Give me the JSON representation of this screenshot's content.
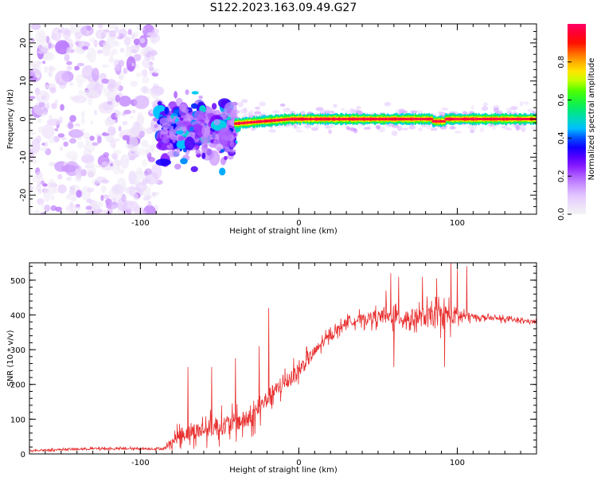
{
  "title": "S122.2023.163.09.49.G27",
  "colors": {
    "snr_line": "#e83030",
    "axis": "#000000",
    "colormap": [
      "#f4f4f4",
      "#e6ccff",
      "#bb77ff",
      "#7a00ff",
      "#0000ff",
      "#00c8ff",
      "#00e87a",
      "#33ff00",
      "#ffff00",
      "#ff9900",
      "#ff0000",
      "#ff0066"
    ]
  },
  "chart_data": [
    {
      "type": "heatmap",
      "title": "S122.2023.163.09.49.G27",
      "xlabel": "Height of straight line (km)",
      "ylabel": "Frequency (Hz)",
      "xlim": [
        -170,
        150
      ],
      "ylim": [
        -25,
        25
      ],
      "x_ticks": [
        -100,
        0,
        100
      ],
      "y_ticks": [
        -20,
        -10,
        0,
        10,
        20
      ],
      "description_of_data": [
        {
          "x_range": [
            -170,
            -88
          ],
          "freq_center": 0,
          "freq_spread": 25,
          "amplitude": [
            0.02,
            0.2
          ],
          "pattern": "scattered noise"
        },
        {
          "x_range": [
            -88,
            -40
          ],
          "freq_center": -3,
          "freq_spread": 6,
          "amplitude": [
            0.15,
            0.5
          ],
          "pattern": "scattered cluster"
        },
        {
          "x_range": [
            -40,
            150
          ],
          "freq_center": 0,
          "freq_spread": 1.5,
          "amplitude": [
            0.5,
            1.0
          ],
          "pattern": "narrow ridge"
        }
      ],
      "colorbar": {
        "label": "Normalized spectral amplitude",
        "range": [
          0.0,
          1.0
        ],
        "ticks": [
          "0.0",
          "0.2",
          "0.4",
          "0.6",
          "0.8"
        ]
      }
    },
    {
      "type": "line",
      "xlabel": "Height of straight line (km)",
      "ylabel": "SNR (10 * v/v)",
      "xlim": [
        -170,
        150
      ],
      "ylim": [
        0,
        550
      ],
      "x_ticks": [
        -100,
        0,
        100
      ],
      "y_ticks": [
        0,
        100,
        200,
        300,
        400,
        500
      ],
      "envelope": [
        {
          "x": -170,
          "mean": 10,
          "spread": 5
        },
        {
          "x": -130,
          "mean": 15,
          "spread": 6
        },
        {
          "x": -100,
          "mean": 15,
          "spread": 6
        },
        {
          "x": -85,
          "mean": 15,
          "spread": 8
        },
        {
          "x": -75,
          "mean": 55,
          "spread": 45
        },
        {
          "x": -50,
          "mean": 80,
          "spread": 60
        },
        {
          "x": -30,
          "mean": 100,
          "spread": 60
        },
        {
          "x": -20,
          "mean": 160,
          "spread": 55
        },
        {
          "x": 0,
          "mean": 240,
          "spread": 50
        },
        {
          "x": 15,
          "mean": 320,
          "spread": 30
        },
        {
          "x": 30,
          "mean": 380,
          "spread": 25
        },
        {
          "x": 50,
          "mean": 395,
          "spread": 40
        },
        {
          "x": 70,
          "mean": 390,
          "spread": 55
        },
        {
          "x": 95,
          "mean": 400,
          "spread": 70
        },
        {
          "x": 110,
          "mean": 395,
          "spread": 15
        },
        {
          "x": 150,
          "mean": 380,
          "spread": 10
        }
      ],
      "spikes": [
        {
          "x": -19,
          "y": 420
        },
        {
          "x": -25,
          "y": 310
        },
        {
          "x": -40,
          "y": 275
        },
        {
          "x": -55,
          "y": 250
        },
        {
          "x": -70,
          "y": 250
        },
        {
          "x": 58,
          "y": 520
        },
        {
          "x": 63,
          "y": 510
        },
        {
          "x": 78,
          "y": 510
        },
        {
          "x": 87,
          "y": 505
        },
        {
          "x": 96,
          "y": 555
        },
        {
          "x": 100,
          "y": 530
        },
        {
          "x": 106,
          "y": 540
        },
        {
          "x": 55,
          "y": 470
        },
        {
          "x": 92,
          "y": 250
        },
        {
          "x": 60,
          "y": 250
        }
      ]
    }
  ]
}
